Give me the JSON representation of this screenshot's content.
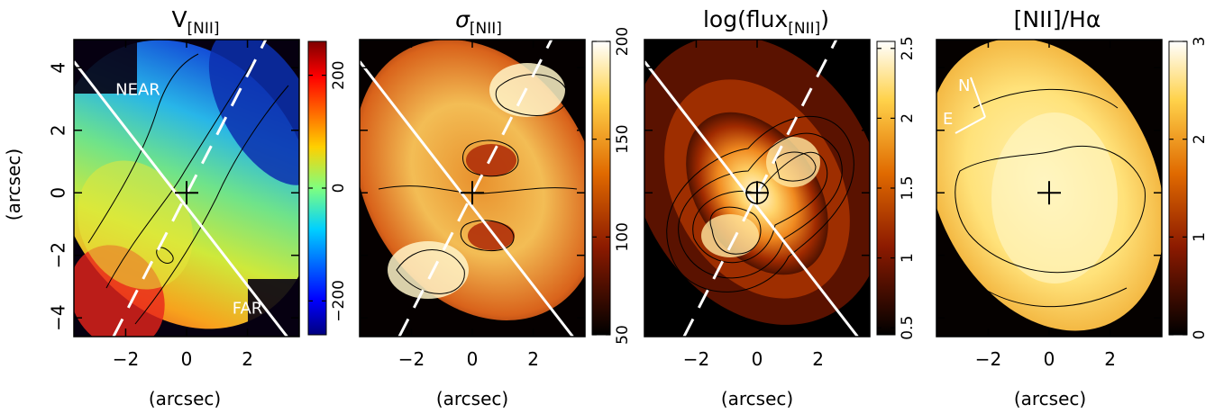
{
  "figure": {
    "shared_xlabel": "(arcsec)",
    "shared_ylabel": "(arcsec)"
  },
  "chart_data": [
    {
      "type": "heatmap",
      "title": "V[NII]",
      "title_main": "V",
      "title_sub": "[NII]",
      "xlabel": "(arcsec)",
      "ylabel": "(arcsec)",
      "xlim": [
        -3.7,
        3.7
      ],
      "ylim": [
        -4.6,
        4.9
      ],
      "xticks": [
        -2,
        0,
        2
      ],
      "yticks": [
        -4,
        -2,
        0,
        2,
        4
      ],
      "xtick_labels": [
        "−2",
        "0",
        "2"
      ],
      "ytick_labels": [
        "−4",
        "−2",
        "0",
        "2",
        "4"
      ],
      "colorbar": {
        "range": [
          -260,
          260
        ],
        "ticks": [
          -200,
          0,
          200
        ],
        "tick_labels": [
          "−200",
          "0",
          "200"
        ],
        "colormap": "jet",
        "orientation": "rotated"
      },
      "center_marker": [
        0,
        0
      ],
      "annotations": [
        {
          "text": "NEAR",
          "x": -1.6,
          "y": 3.3
        },
        {
          "text": "FAR",
          "x": 2.0,
          "y": -3.7
        }
      ],
      "lines": [
        {
          "style": "solid",
          "color": "#ffffff",
          "from": [
            -3.7,
            4.2
          ],
          "to": [
            3.3,
            -4.6
          ]
        },
        {
          "style": "dashed",
          "color": "#ffffff",
          "from": [
            -2.4,
            -4.6
          ],
          "to": [
            2.6,
            4.9
          ]
        }
      ]
    },
    {
      "type": "heatmap",
      "title": "σ[NII]",
      "title_main": "σ",
      "title_sub": "[NII]",
      "xlabel": "(arcsec)",
      "xlim": [
        -3.7,
        3.7
      ],
      "ylim": [
        -4.6,
        4.9
      ],
      "xticks": [
        -2,
        0,
        2
      ],
      "xtick_labels": [
        "−2",
        "0",
        "2"
      ],
      "colorbar": {
        "range": [
          50,
          200
        ],
        "ticks": [
          50,
          100,
          150,
          200
        ],
        "tick_labels": [
          "50",
          "100",
          "150",
          "200"
        ],
        "colormap": "heat",
        "orientation": "rotated"
      },
      "center_marker": [
        0,
        0
      ],
      "lines": [
        {
          "style": "solid",
          "color": "#ffffff",
          "from": [
            -3.7,
            4.2
          ],
          "to": [
            3.3,
            -4.6
          ]
        },
        {
          "style": "dashed",
          "color": "#ffffff",
          "from": [
            -2.4,
            -4.6
          ],
          "to": [
            2.6,
            4.9
          ]
        }
      ]
    },
    {
      "type": "heatmap",
      "title": "log(flux[NII])",
      "title_main": "log(flux",
      "title_sub": "[NII]",
      "title_end": ")",
      "xlabel": "(arcsec)",
      "xlim": [
        -3.7,
        3.7
      ],
      "ylim": [
        -4.6,
        4.9
      ],
      "xticks": [
        -2,
        0,
        2
      ],
      "xtick_labels": [
        "−2",
        "0",
        "2"
      ],
      "colorbar": {
        "range": [
          0.45,
          2.55
        ],
        "ticks": [
          0.5,
          1,
          1.5,
          2,
          2.5
        ],
        "tick_labels": [
          "0.5",
          "1",
          "1.5",
          "2",
          "2.5"
        ],
        "colormap": "heat",
        "orientation": "rotated"
      },
      "center_marker": [
        0,
        0
      ],
      "lines": [
        {
          "style": "solid",
          "color": "#ffffff",
          "from": [
            -3.7,
            4.2
          ],
          "to": [
            3.3,
            -4.6
          ]
        },
        {
          "style": "dashed",
          "color": "#ffffff",
          "from": [
            -2.4,
            -4.6
          ],
          "to": [
            2.6,
            4.9
          ]
        }
      ]
    },
    {
      "type": "heatmap",
      "title": "[NII]/Hα",
      "title_main": "[NII]/Hα",
      "xlabel": "(arcsec)",
      "xlim": [
        -3.7,
        3.7
      ],
      "ylim": [
        -4.6,
        4.9
      ],
      "xticks": [
        -2,
        0,
        2
      ],
      "xtick_labels": [
        "−2",
        "0",
        "2"
      ],
      "colorbar": {
        "range": [
          0,
          3
        ],
        "ticks": [
          0,
          1,
          2,
          3
        ],
        "tick_labels": [
          "0",
          "1",
          "2",
          "3"
        ],
        "colormap": "heat",
        "orientation": "rotated"
      },
      "center_marker": [
        0,
        0
      ],
      "compass": {
        "north": "N",
        "east": "E"
      }
    }
  ]
}
